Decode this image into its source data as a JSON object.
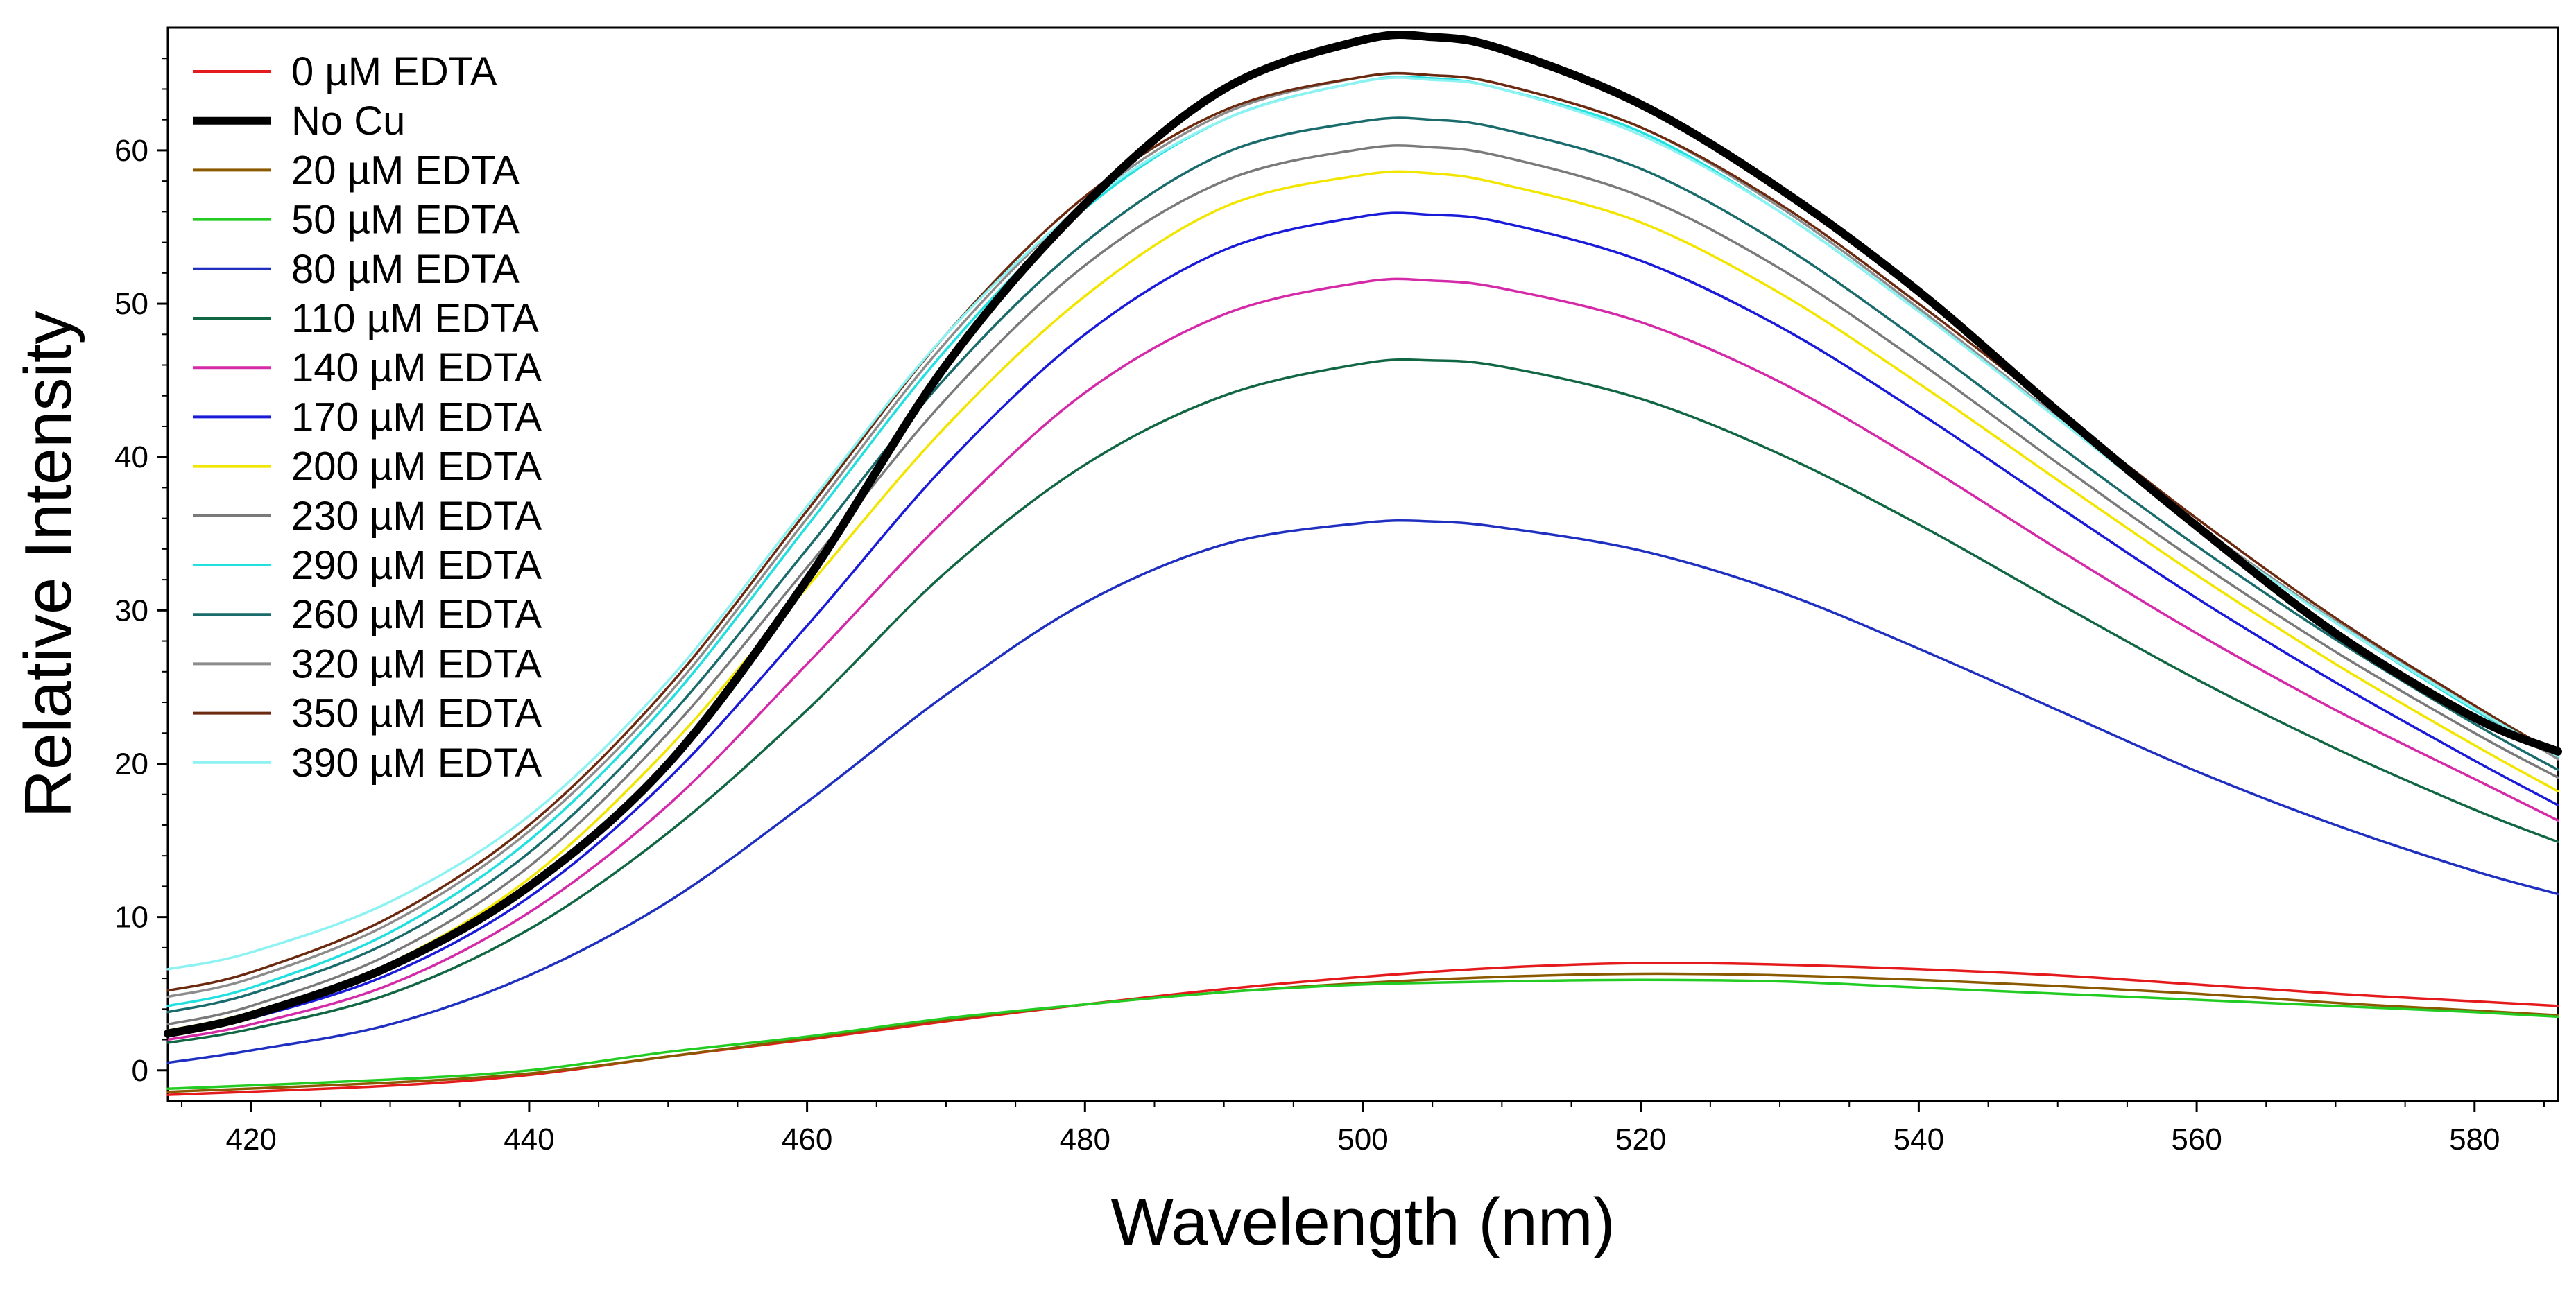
{
  "chart_data": {
    "type": "line",
    "title": "",
    "xlabel": "Wavelength (nm)",
    "ylabel": "Relative Intensity",
    "xlim": [
      414,
      586
    ],
    "ylim": [
      -2,
      68
    ],
    "x_ticks": [
      420,
      440,
      460,
      480,
      500,
      520,
      540,
      560,
      580
    ],
    "y_ticks": [
      0,
      10,
      20,
      30,
      40,
      50,
      60
    ],
    "grid": false,
    "legend_position": "top-left",
    "series": [
      {
        "name": "0 µM EDTA",
        "color": "#e41a1c",
        "width": 3.5,
        "points": [
          [
            414,
            -1.6
          ],
          [
            430,
            -1.0
          ],
          [
            440,
            -0.3
          ],
          [
            450,
            0.9
          ],
          [
            460,
            2.0
          ],
          [
            470,
            3.2
          ],
          [
            480,
            4.3
          ],
          [
            490,
            5.3
          ],
          [
            500,
            6.1
          ],
          [
            510,
            6.7
          ],
          [
            520,
            7.0
          ],
          [
            530,
            6.9
          ],
          [
            540,
            6.6
          ],
          [
            550,
            6.2
          ],
          [
            560,
            5.6
          ],
          [
            570,
            5.0
          ],
          [
            580,
            4.5
          ],
          [
            586,
            4.2
          ]
        ]
      },
      {
        "name": "No Cu",
        "color": "#000000",
        "width": 12,
        "points": [
          [
            414,
            2.4
          ],
          [
            420,
            3.6
          ],
          [
            430,
            6.8
          ],
          [
            440,
            12.0
          ],
          [
            450,
            20.0
          ],
          [
            460,
            32.0
          ],
          [
            470,
            46.0
          ],
          [
            480,
            56.5
          ],
          [
            490,
            64.0
          ],
          [
            500,
            67.2
          ],
          [
            505,
            67.4
          ],
          [
            510,
            66.6
          ],
          [
            520,
            63.0
          ],
          [
            530,
            57.5
          ],
          [
            540,
            50.8
          ],
          [
            550,
            43.0
          ],
          [
            560,
            35.5
          ],
          [
            570,
            28.5
          ],
          [
            580,
            23.0
          ],
          [
            586,
            20.8
          ]
        ]
      },
      {
        "name": "20 µM EDTA",
        "color": "#8b5a00",
        "width": 3.5,
        "points": [
          [
            414,
            -1.4
          ],
          [
            430,
            -0.8
          ],
          [
            440,
            -0.2
          ],
          [
            450,
            0.9
          ],
          [
            460,
            2.1
          ],
          [
            470,
            3.3
          ],
          [
            480,
            4.3
          ],
          [
            490,
            5.1
          ],
          [
            500,
            5.7
          ],
          [
            510,
            6.1
          ],
          [
            520,
            6.3
          ],
          [
            530,
            6.2
          ],
          [
            540,
            5.9
          ],
          [
            550,
            5.5
          ],
          [
            560,
            5.0
          ],
          [
            570,
            4.4
          ],
          [
            580,
            3.9
          ],
          [
            586,
            3.6
          ]
        ]
      },
      {
        "name": "50 µM EDTA",
        "color": "#22cc22",
        "width": 3.5,
        "points": [
          [
            414,
            -1.2
          ],
          [
            430,
            -0.6
          ],
          [
            440,
            0.0
          ],
          [
            450,
            1.2
          ],
          [
            460,
            2.2
          ],
          [
            470,
            3.4
          ],
          [
            480,
            4.3
          ],
          [
            490,
            5.1
          ],
          [
            500,
            5.6
          ],
          [
            510,
            5.8
          ],
          [
            520,
            5.9
          ],
          [
            530,
            5.8
          ],
          [
            540,
            5.4
          ],
          [
            550,
            5.0
          ],
          [
            560,
            4.6
          ],
          [
            570,
            4.2
          ],
          [
            580,
            3.8
          ],
          [
            586,
            3.5
          ]
        ]
      },
      {
        "name": "80 µM EDTA",
        "color": "#1f2fbf",
        "width": 3.5,
        "points": [
          [
            414,
            0.5
          ],
          [
            420,
            1.3
          ],
          [
            430,
            3.0
          ],
          [
            440,
            6.2
          ],
          [
            450,
            11.0
          ],
          [
            460,
            17.5
          ],
          [
            470,
            24.5
          ],
          [
            480,
            30.5
          ],
          [
            490,
            34.3
          ],
          [
            500,
            35.7
          ],
          [
            505,
            35.8
          ],
          [
            510,
            35.4
          ],
          [
            520,
            33.9
          ],
          [
            530,
            31.2
          ],
          [
            540,
            27.5
          ],
          [
            550,
            23.5
          ],
          [
            560,
            19.5
          ],
          [
            570,
            16.0
          ],
          [
            580,
            13.0
          ],
          [
            586,
            11.5
          ]
        ]
      },
      {
        "name": "110 µM EDTA",
        "color": "#116644",
        "width": 3.5,
        "points": [
          [
            414,
            1.8
          ],
          [
            420,
            2.7
          ],
          [
            430,
            5.0
          ],
          [
            440,
            9.2
          ],
          [
            450,
            15.5
          ],
          [
            460,
            23.5
          ],
          [
            470,
            32.5
          ],
          [
            480,
            39.5
          ],
          [
            490,
            44.0
          ],
          [
            500,
            46.1
          ],
          [
            505,
            46.3
          ],
          [
            510,
            45.9
          ],
          [
            520,
            43.8
          ],
          [
            530,
            40.2
          ],
          [
            540,
            35.6
          ],
          [
            550,
            30.5
          ],
          [
            560,
            25.5
          ],
          [
            570,
            21.0
          ],
          [
            580,
            17.0
          ],
          [
            586,
            14.9
          ]
        ]
      },
      {
        "name": "140 µM EDTA",
        "color": "#d42aa8",
        "width": 3.5,
        "points": [
          [
            414,
            2.0
          ],
          [
            420,
            3.0
          ],
          [
            430,
            5.6
          ],
          [
            440,
            10.3
          ],
          [
            450,
            17.3
          ],
          [
            460,
            26.5
          ],
          [
            470,
            36.0
          ],
          [
            480,
            44.2
          ],
          [
            490,
            49.3
          ],
          [
            500,
            51.4
          ],
          [
            505,
            51.5
          ],
          [
            510,
            51.0
          ],
          [
            520,
            48.8
          ],
          [
            530,
            44.9
          ],
          [
            540,
            39.7
          ],
          [
            550,
            34.0
          ],
          [
            560,
            28.5
          ],
          [
            570,
            23.5
          ],
          [
            580,
            19.0
          ],
          [
            586,
            16.3
          ]
        ]
      },
      {
        "name": "170 µM EDTA",
        "color": "#1a1ad9",
        "width": 3.5,
        "points": [
          [
            414,
            2.3
          ],
          [
            420,
            3.4
          ],
          [
            430,
            6.3
          ],
          [
            440,
            11.3
          ],
          [
            450,
            19.0
          ],
          [
            460,
            29.0
          ],
          [
            470,
            39.5
          ],
          [
            480,
            48.0
          ],
          [
            490,
            53.5
          ],
          [
            500,
            55.7
          ],
          [
            505,
            55.8
          ],
          [
            510,
            55.3
          ],
          [
            520,
            52.8
          ],
          [
            530,
            48.5
          ],
          [
            540,
            42.9
          ],
          [
            550,
            36.8
          ],
          [
            560,
            30.8
          ],
          [
            570,
            25.3
          ],
          [
            580,
            20.2
          ],
          [
            586,
            17.3
          ]
        ]
      },
      {
        "name": "200 µM EDTA",
        "color": "#f2e600",
        "width": 3.5,
        "points": [
          [
            414,
            2.6
          ],
          [
            420,
            3.8
          ],
          [
            430,
            7.0
          ],
          [
            440,
            12.5
          ],
          [
            450,
            21.0
          ],
          [
            460,
            31.5
          ],
          [
            470,
            42.0
          ],
          [
            480,
            50.5
          ],
          [
            490,
            56.3
          ],
          [
            500,
            58.4
          ],
          [
            505,
            58.5
          ],
          [
            510,
            57.8
          ],
          [
            520,
            55.3
          ],
          [
            530,
            50.7
          ],
          [
            540,
            44.8
          ],
          [
            550,
            38.5
          ],
          [
            560,
            32.3
          ],
          [
            570,
            26.5
          ],
          [
            580,
            21.2
          ],
          [
            586,
            18.2
          ]
        ]
      },
      {
        "name": "230 µM EDTA",
        "color": "#7a7a7a",
        "width": 3.5,
        "points": [
          [
            414,
            3.0
          ],
          [
            420,
            4.2
          ],
          [
            430,
            7.6
          ],
          [
            440,
            13.3
          ],
          [
            450,
            22.0
          ],
          [
            460,
            32.8
          ],
          [
            470,
            43.8
          ],
          [
            480,
            52.5
          ],
          [
            490,
            58.0
          ],
          [
            500,
            60.1
          ],
          [
            505,
            60.2
          ],
          [
            510,
            59.6
          ],
          [
            520,
            57.0
          ],
          [
            530,
            52.3
          ],
          [
            540,
            46.2
          ],
          [
            550,
            39.6
          ],
          [
            560,
            33.2
          ],
          [
            570,
            27.3
          ],
          [
            580,
            22.0
          ],
          [
            586,
            19.1
          ]
        ]
      },
      {
        "name": "290 µM EDTA",
        "color": "#22e0e0",
        "width": 3.5,
        "points": [
          [
            414,
            4.2
          ],
          [
            420,
            5.4
          ],
          [
            430,
            9.0
          ],
          [
            440,
            15.0
          ],
          [
            450,
            24.0
          ],
          [
            460,
            35.5
          ],
          [
            470,
            47.0
          ],
          [
            480,
            56.2
          ],
          [
            490,
            62.0
          ],
          [
            500,
            64.5
          ],
          [
            505,
            64.7
          ],
          [
            510,
            64.0
          ],
          [
            520,
            61.2
          ],
          [
            530,
            56.0
          ],
          [
            540,
            49.5
          ],
          [
            550,
            42.5
          ],
          [
            560,
            35.5
          ],
          [
            570,
            29.2
          ],
          [
            580,
            23.5
          ],
          [
            586,
            20.4
          ]
        ]
      },
      {
        "name": "260 µM EDTA",
        "color": "#1a6b6b",
        "width": 3.5,
        "points": [
          [
            414,
            3.8
          ],
          [
            420,
            5.0
          ],
          [
            430,
            8.4
          ],
          [
            440,
            14.2
          ],
          [
            450,
            23.0
          ],
          [
            460,
            34.0
          ],
          [
            470,
            45.2
          ],
          [
            480,
            54.0
          ],
          [
            490,
            59.8
          ],
          [
            500,
            61.9
          ],
          [
            505,
            62.0
          ],
          [
            510,
            61.4
          ],
          [
            520,
            58.8
          ],
          [
            530,
            53.9
          ],
          [
            540,
            47.6
          ],
          [
            550,
            40.8
          ],
          [
            560,
            34.2
          ],
          [
            570,
            28.1
          ],
          [
            580,
            22.6
          ],
          [
            586,
            19.6
          ]
        ]
      },
      {
        "name": "320 µM EDTA",
        "color": "#8c8c8c",
        "width": 3.5,
        "points": [
          [
            414,
            4.8
          ],
          [
            420,
            6.0
          ],
          [
            430,
            9.6
          ],
          [
            440,
            15.6
          ],
          [
            450,
            24.5
          ],
          [
            460,
            36.0
          ],
          [
            470,
            47.5
          ],
          [
            480,
            56.6
          ],
          [
            490,
            62.4
          ],
          [
            500,
            64.8
          ],
          [
            505,
            64.9
          ],
          [
            510,
            64.3
          ],
          [
            520,
            61.5
          ],
          [
            530,
            56.3
          ],
          [
            540,
            49.7
          ],
          [
            550,
            42.6
          ],
          [
            560,
            35.6
          ],
          [
            570,
            29.3
          ],
          [
            580,
            23.6
          ],
          [
            586,
            20.3
          ]
        ]
      },
      {
        "name": "350 µM EDTA",
        "color": "#6b2a10",
        "width": 3.5,
        "points": [
          [
            414,
            5.2
          ],
          [
            420,
            6.4
          ],
          [
            430,
            10.0
          ],
          [
            440,
            16.0
          ],
          [
            450,
            25.0
          ],
          [
            460,
            36.5
          ],
          [
            470,
            48.0
          ],
          [
            480,
            57.0
          ],
          [
            490,
            62.6
          ],
          [
            500,
            64.8
          ],
          [
            505,
            64.9
          ],
          [
            510,
            64.3
          ],
          [
            520,
            61.5
          ],
          [
            530,
            56.5
          ],
          [
            540,
            50.0
          ],
          [
            550,
            43.0
          ],
          [
            560,
            36.0
          ],
          [
            570,
            29.5
          ],
          [
            580,
            23.8
          ],
          [
            586,
            20.6
          ]
        ]
      },
      {
        "name": "390 µM EDTA",
        "color": "#8cf2f2",
        "width": 3.5,
        "points": [
          [
            414,
            6.6
          ],
          [
            420,
            7.7
          ],
          [
            430,
            11.0
          ],
          [
            440,
            16.6
          ],
          [
            450,
            25.4
          ],
          [
            460,
            36.8
          ],
          [
            470,
            48.0
          ],
          [
            480,
            56.5
          ],
          [
            490,
            62.0
          ],
          [
            500,
            64.5
          ],
          [
            505,
            64.6
          ],
          [
            510,
            64.0
          ],
          [
            520,
            61.0
          ],
          [
            530,
            56.0
          ],
          [
            540,
            49.5
          ],
          [
            550,
            42.5
          ],
          [
            560,
            35.5
          ],
          [
            570,
            29.2
          ],
          [
            580,
            23.6
          ],
          [
            586,
            20.5
          ]
        ]
      }
    ]
  }
}
